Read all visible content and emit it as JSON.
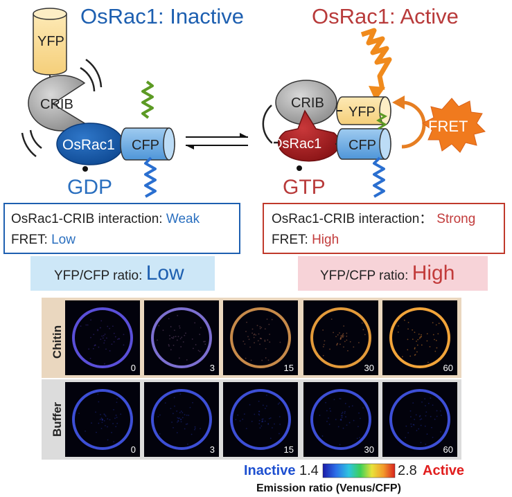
{
  "left_state": {
    "title": "OsRac1: Inactive",
    "yfp": "YFP",
    "crib": "CRIB",
    "osrac1": "OsRac1",
    "cfp": "CFP",
    "nucleotide": "GDP",
    "box_line1_prefix": "OsRac1-CRIB interaction: ",
    "box_line1_value": "Weak",
    "box_line2_prefix": "FRET: ",
    "box_line2_value": "Low",
    "ratio_prefix": "YFP/CFP ratio: ",
    "ratio_value": "Low"
  },
  "right_state": {
    "title": "OsRac1: Active",
    "crib": "CRIB",
    "yfp": "YFP",
    "osrac1": "OsRac1",
    "cfp": "CFP",
    "fret": "FRET",
    "nucleotide": "GTP",
    "box_line1_prefix": "OsRac1-CRIB interaction：",
    "box_line1_value": "Strong",
    "box_line2_prefix": "FRET: ",
    "box_line2_value": "High",
    "ratio_prefix": "YFP/CFP ratio: ",
    "ratio_value": "High"
  },
  "panel": {
    "row_labels": [
      "Chitin",
      "Buffer"
    ],
    "time_points": [
      "0",
      "3",
      "15",
      "30",
      "60"
    ],
    "scale": {
      "inactive_label": "Inactive",
      "min": "1.4",
      "max": "2.8",
      "active_label": "Active",
      "caption": "Emission ratio (Venus/CFP)"
    }
  },
  "colors": {
    "inactive_blue": "#1d5fb0",
    "active_red": "#b83a3a",
    "low_bg": "#cde7f7",
    "high_bg": "#f7d3d8",
    "chitin_panel_bg": "#ead7bf",
    "buffer_panel_bg": "#dcdcdc"
  }
}
